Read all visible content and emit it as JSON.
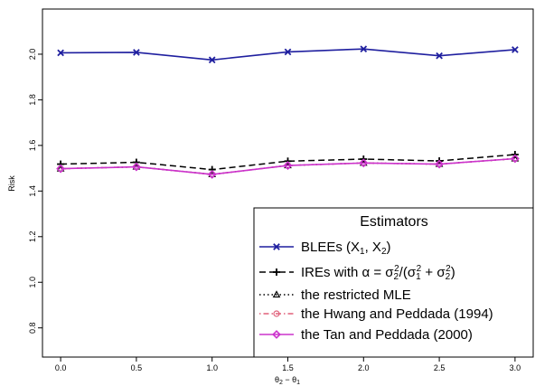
{
  "chart_data": {
    "type": "line",
    "title": "",
    "xlabel": "θ₂ − θ₁",
    "ylabel": "Risk",
    "x": [
      0.0,
      0.5,
      1.0,
      1.5,
      2.0,
      2.5,
      3.0
    ],
    "xlim": [
      -0.12,
      3.12
    ],
    "ylim": [
      0.672,
      2.198
    ],
    "xticks": [
      "0.0",
      "0.5",
      "1.0",
      "1.5",
      "2.0",
      "2.5",
      "3.0"
    ],
    "yticks": [
      "0.8",
      "1.0",
      "1.2",
      "1.4",
      "1.6",
      "1.8",
      "2.0"
    ],
    "grid": false,
    "legend": {
      "title": "Estimators",
      "placement": "bottom-right"
    },
    "series": [
      {
        "name": "BLEEs (X₁, X₂)",
        "values": [
          2.006,
          2.008,
          1.975,
          2.01,
          2.023,
          1.993,
          2.02
        ],
        "color": "#1f1f9f",
        "dash": "solid",
        "marker": "x"
      },
      {
        "name": "IREs with α = σ₂²/(σ₁² + σ₂²)",
        "values": [
          1.518,
          1.526,
          1.494,
          1.531,
          1.54,
          1.532,
          1.56
        ],
        "color": "#000000",
        "dash": "dashed",
        "marker": "plus"
      },
      {
        "name": "the restricted MLE",
        "values": [
          1.498,
          1.506,
          1.473,
          1.512,
          1.523,
          1.518,
          1.542
        ],
        "color": "#000000",
        "dash": "dotted",
        "marker": "triangle"
      },
      {
        "name": "the Hwang and Peddada (1994)",
        "values": [
          1.498,
          1.506,
          1.473,
          1.512,
          1.523,
          1.518,
          1.542
        ],
        "color": "#e0607a",
        "dash": "dotdash",
        "marker": "circle"
      },
      {
        "name": "the Tan and Peddada (2000)",
        "values": [
          1.498,
          1.506,
          1.473,
          1.512,
          1.523,
          1.518,
          1.542
        ],
        "color": "#cc33cc",
        "dash": "solid",
        "marker": "diamond"
      }
    ]
  }
}
